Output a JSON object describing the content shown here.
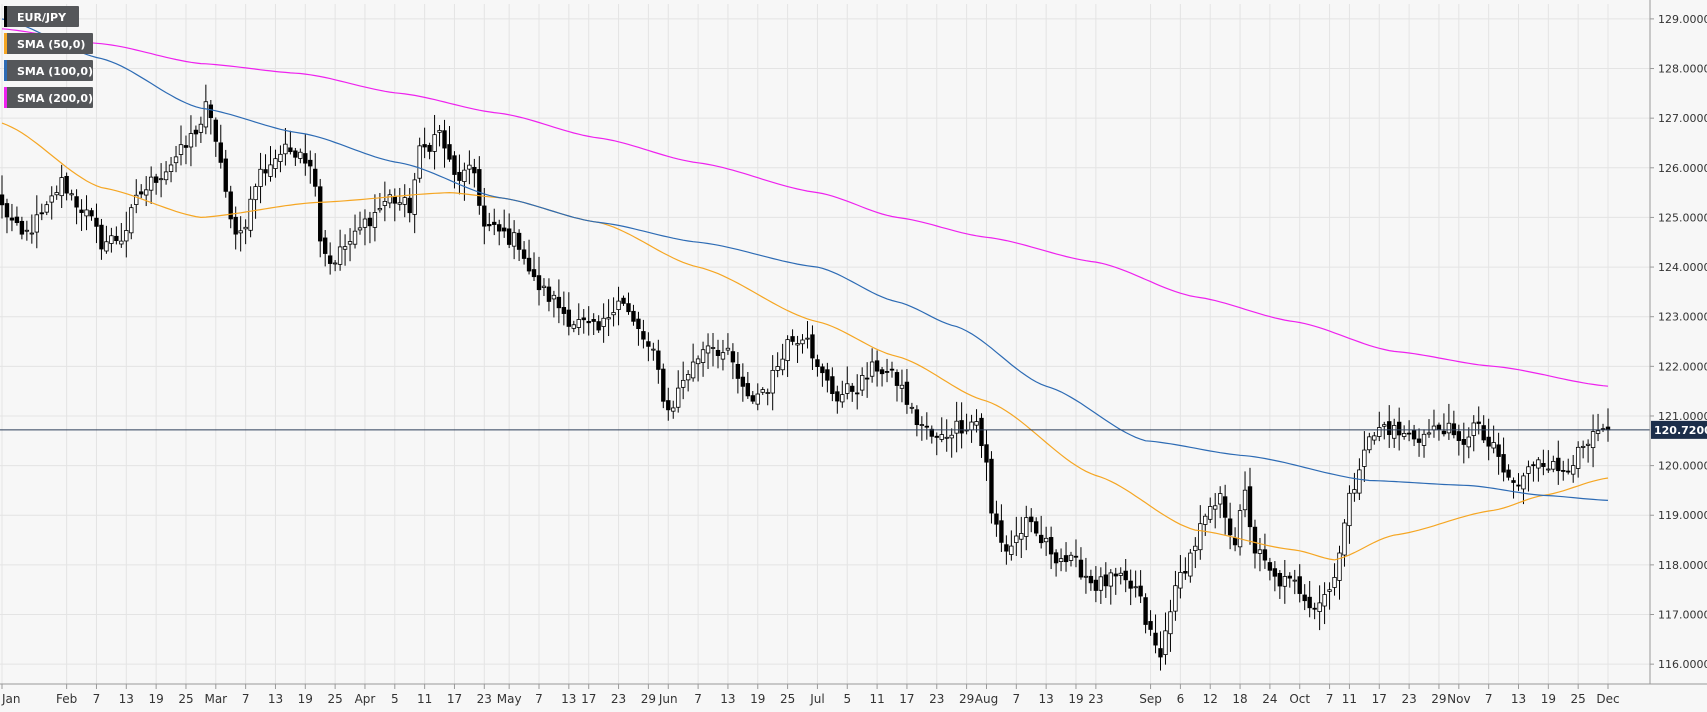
{
  "chart_data": {
    "type": "candlestick",
    "title": "EUR/JPY",
    "legend": [
      {
        "label": "EUR/JPY",
        "color": "#000000"
      },
      {
        "label": "SMA (50,0)",
        "color": "#f5a623"
      },
      {
        "label": "SMA (100,0)",
        "color": "#2d6bb4"
      },
      {
        "label": "SMA (200,0)",
        "color": "#ee22ee"
      }
    ],
    "legend_position": "top-left",
    "ylim": [
      115.6,
      129.3
    ],
    "y_ticks": [
      "116.0000",
      "117.0000",
      "118.0000",
      "119.0000",
      "120.0000",
      "121.0000",
      "122.0000",
      "123.0000",
      "124.0000",
      "125.0000",
      "126.0000",
      "127.0000",
      "128.0000",
      "129.0000"
    ],
    "y_tick_values": [
      116,
      117,
      118,
      119,
      120,
      121,
      122,
      123,
      124,
      125,
      126,
      127,
      128,
      129
    ],
    "x_ticks": [
      "Jan",
      "Feb",
      "7",
      "13",
      "19",
      "25",
      "Mar",
      "7",
      "13",
      "19",
      "25",
      "Apr",
      "5",
      "11",
      "17",
      "23",
      "May",
      "7",
      "13",
      "17",
      "23",
      "29",
      "Jun",
      "7",
      "13",
      "19",
      "25",
      "Jul",
      "5",
      "11",
      "17",
      "23",
      "29",
      "Aug",
      "7",
      "13",
      "19",
      "23",
      "Sep",
      "6",
      "12",
      "18",
      "24",
      "Oct",
      "7",
      "11",
      "17",
      "23",
      "29",
      "Nov",
      "7",
      "13",
      "19",
      "25",
      "Dec"
    ],
    "x_tick_index": [
      0,
      13,
      19,
      25,
      31,
      37,
      43,
      49,
      55,
      61,
      67,
      73,
      79,
      85,
      91,
      97,
      102,
      108,
      114,
      118,
      124,
      130,
      134,
      140,
      146,
      152,
      158,
      164,
      170,
      176,
      182,
      188,
      194,
      198,
      204,
      210,
      216,
      220,
      231,
      237,
      243,
      249,
      255,
      261,
      267,
      271,
      277,
      283,
      289,
      293,
      299,
      305,
      311,
      317,
      323
    ],
    "last_price": "120.7200",
    "last_price_value": 120.72,
    "grid": true,
    "n_bars": 324,
    "ohlc_anchors": [
      [
        0,
        125.2
      ],
      [
        4,
        124.6
      ],
      [
        8,
        125.0
      ],
      [
        12,
        125.7
      ],
      [
        16,
        125.2
      ],
      [
        18,
        124.9
      ],
      [
        20,
        124.5
      ],
      [
        24,
        124.6
      ],
      [
        28,
        125.5
      ],
      [
        32,
        125.9
      ],
      [
        36,
        126.3
      ],
      [
        40,
        126.9
      ],
      [
        41,
        127.2
      ],
      [
        43,
        126.6
      ],
      [
        46,
        124.9
      ],
      [
        48,
        124.7
      ],
      [
        52,
        125.9
      ],
      [
        56,
        126.3
      ],
      [
        60,
        126.4
      ],
      [
        63,
        125.8
      ],
      [
        64,
        124.6
      ],
      [
        66,
        124.1
      ],
      [
        70,
        124.5
      ],
      [
        74,
        125.0
      ],
      [
        78,
        125.4
      ],
      [
        82,
        125.2
      ],
      [
        84,
        126.3
      ],
      [
        88,
        126.7
      ],
      [
        91,
        125.8
      ],
      [
        95,
        125.9
      ],
      [
        97,
        124.8
      ],
      [
        100,
        124.7
      ],
      [
        104,
        124.5
      ],
      [
        107,
        123.7
      ],
      [
        110,
        123.4
      ],
      [
        115,
        122.9
      ],
      [
        120,
        122.7
      ],
      [
        124,
        123.4
      ],
      [
        128,
        122.7
      ],
      [
        131,
        122.2
      ],
      [
        134,
        121.1
      ],
      [
        138,
        121.9
      ],
      [
        142,
        122.5
      ],
      [
        146,
        122.2
      ],
      [
        150,
        121.3
      ],
      [
        154,
        121.6
      ],
      [
        158,
        122.5
      ],
      [
        162,
        122.7
      ],
      [
        164,
        121.9
      ],
      [
        168,
        121.4
      ],
      [
        172,
        121.6
      ],
      [
        176,
        122.0
      ],
      [
        180,
        121.7
      ],
      [
        184,
        120.9
      ],
      [
        188,
        120.5
      ],
      [
        192,
        120.8
      ],
      [
        196,
        120.9
      ],
      [
        198,
        120.0
      ],
      [
        199,
        119.0
      ],
      [
        202,
        118.3
      ],
      [
        206,
        118.8
      ],
      [
        210,
        118.4
      ],
      [
        212,
        118.2
      ],
      [
        216,
        118.0
      ],
      [
        220,
        117.6
      ],
      [
        224,
        117.7
      ],
      [
        228,
        117.5
      ],
      [
        231,
        116.6
      ],
      [
        233,
        116.1
      ],
      [
        235,
        117.2
      ],
      [
        238,
        118.0
      ],
      [
        242,
        118.9
      ],
      [
        245,
        119.3
      ],
      [
        248,
        118.5
      ],
      [
        250,
        119.4
      ],
      [
        252,
        118.3
      ],
      [
        256,
        117.7
      ],
      [
        260,
        117.6
      ],
      [
        264,
        117.2
      ],
      [
        267,
        117.5
      ],
      [
        269,
        118.3
      ],
      [
        271,
        119.3
      ],
      [
        274,
        120.4
      ],
      [
        278,
        120.8
      ],
      [
        282,
        120.6
      ],
      [
        286,
        120.6
      ],
      [
        290,
        120.8
      ],
      [
        293,
        120.4
      ],
      [
        296,
        120.8
      ],
      [
        300,
        120.3
      ],
      [
        303,
        119.7
      ],
      [
        305,
        119.6
      ],
      [
        309,
        120.2
      ],
      [
        313,
        119.9
      ],
      [
        317,
        120.2
      ],
      [
        321,
        120.6
      ],
      [
        323,
        120.72
      ]
    ],
    "sma50_anchors": [
      [
        0,
        126.9
      ],
      [
        20,
        125.6
      ],
      [
        40,
        125.0
      ],
      [
        63,
        125.3
      ],
      [
        90,
        125.5
      ],
      [
        100,
        125.4
      ],
      [
        120,
        124.9
      ],
      [
        140,
        124.0
      ],
      [
        164,
        122.9
      ],
      [
        180,
        122.2
      ],
      [
        198,
        121.3
      ],
      [
        220,
        119.8
      ],
      [
        240,
        118.7
      ],
      [
        260,
        118.3
      ],
      [
        268,
        118.1
      ],
      [
        280,
        118.6
      ],
      [
        300,
        119.1
      ],
      [
        310,
        119.4
      ],
      [
        323,
        119.75
      ]
    ],
    "sma100_anchors": [
      [
        0,
        129.0
      ],
      [
        20,
        128.2
      ],
      [
        40,
        127.2
      ],
      [
        60,
        126.7
      ],
      [
        80,
        126.1
      ],
      [
        100,
        125.4
      ],
      [
        120,
        124.9
      ],
      [
        140,
        124.5
      ],
      [
        164,
        124.0
      ],
      [
        180,
        123.3
      ],
      [
        192,
        122.8
      ],
      [
        210,
        121.6
      ],
      [
        230,
        120.5
      ],
      [
        250,
        120.2
      ],
      [
        275,
        119.7
      ],
      [
        295,
        119.6
      ],
      [
        310,
        119.4
      ],
      [
        323,
        119.3
      ]
    ],
    "sma200_anchors": [
      [
        0,
        128.8
      ],
      [
        20,
        128.5
      ],
      [
        40,
        128.1
      ],
      [
        60,
        127.9
      ],
      [
        80,
        127.5
      ],
      [
        100,
        127.1
      ],
      [
        120,
        126.6
      ],
      [
        140,
        126.1
      ],
      [
        164,
        125.5
      ],
      [
        180,
        125.0
      ],
      [
        198,
        124.6
      ],
      [
        220,
        124.1
      ],
      [
        240,
        123.4
      ],
      [
        260,
        122.9
      ],
      [
        280,
        122.3
      ],
      [
        300,
        122.0
      ],
      [
        323,
        121.6
      ]
    ]
  }
}
